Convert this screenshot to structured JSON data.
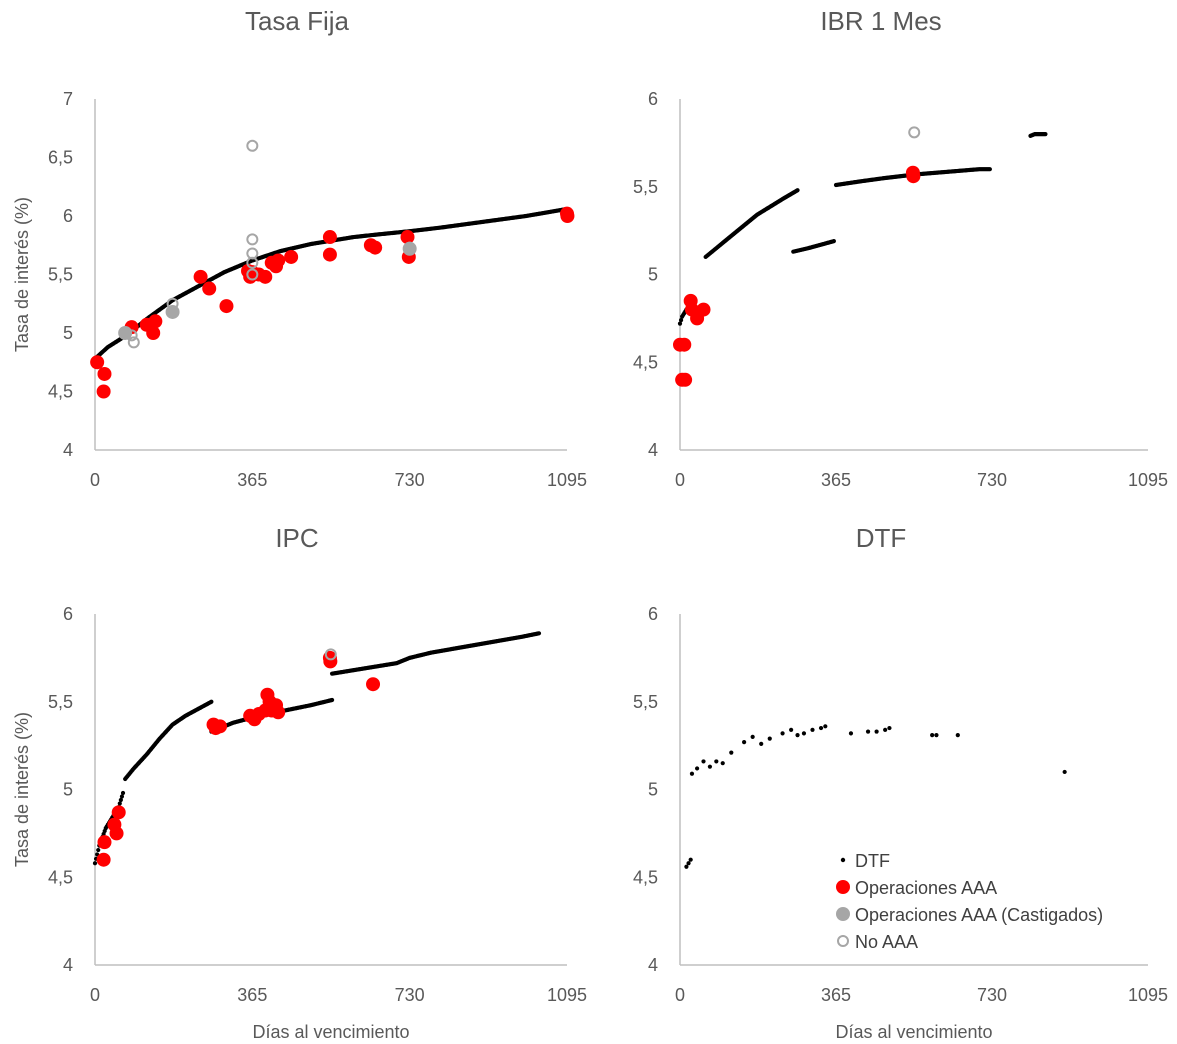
{
  "colors": {
    "dtf": "#000000",
    "aaa": "#ff0000",
    "castigados": "#a6a6a6",
    "no_aaa": "#a6a6a6"
  },
  "legend": {
    "dtf": "DTF",
    "aaa": "Operaciones AAA",
    "castigados": "Operaciones AAA (Castigados)",
    "no_aaa": "No AAA"
  },
  "chart_data": [
    {
      "type": "scatter",
      "title": "Tasa Fija",
      "xlabel": "",
      "ylabel": "Tasa de interés (%)",
      "xlim": [
        0,
        1095
      ],
      "ylim": [
        4,
        7
      ],
      "xticks": [
        "0",
        "365",
        "730",
        "1095"
      ],
      "yticks": [
        "4",
        "4,5",
        "5",
        "5,5",
        "6",
        "6,5",
        "7"
      ],
      "series": [
        {
          "key": "dtf",
          "curves": [
            {
              "x": [
                0,
                30,
                60,
                90,
                120,
                180,
                250,
                300,
                365,
                430,
                500,
                550,
                600,
                650,
                730,
                800,
                900,
                1000,
                1095
              ],
              "y": [
                4.78,
                4.88,
                4.95,
                5.03,
                5.12,
                5.28,
                5.42,
                5.52,
                5.62,
                5.7,
                5.76,
                5.79,
                5.82,
                5.84,
                5.87,
                5.9,
                5.95,
                6.0,
                6.06
              ]
            }
          ]
        },
        {
          "key": "aaa",
          "points": [
            [
              5,
              4.75
            ],
            [
              20,
              4.5
            ],
            [
              22,
              4.65
            ],
            [
              85,
              5.05
            ],
            [
              120,
              5.07
            ],
            [
              135,
              5.0
            ],
            [
              140,
              5.1
            ],
            [
              245,
              5.48
            ],
            [
              265,
              5.38
            ],
            [
              305,
              5.23
            ],
            [
              355,
              5.53
            ],
            [
              360,
              5.48
            ],
            [
              365,
              5.52
            ],
            [
              380,
              5.5
            ],
            [
              395,
              5.48
            ],
            [
              410,
              5.6
            ],
            [
              420,
              5.57
            ],
            [
              425,
              5.62
            ],
            [
              455,
              5.65
            ],
            [
              545,
              5.82
            ],
            [
              545,
              5.67
            ],
            [
              640,
              5.75
            ],
            [
              650,
              5.73
            ],
            [
              725,
              5.82
            ],
            [
              728,
              5.65
            ],
            [
              1095,
              6.02
            ],
            [
              1096,
              6.0
            ]
          ]
        },
        {
          "key": "castigados",
          "points": [
            [
              70,
              5.0
            ],
            [
              180,
              5.18
            ],
            [
              730,
              5.72
            ]
          ]
        },
        {
          "key": "no_aaa",
          "points": [
            [
              85,
              4.98
            ],
            [
              90,
              4.92
            ],
            [
              180,
              5.25
            ],
            [
              365,
              6.6
            ],
            [
              365,
              5.8
            ],
            [
              365,
              5.68
            ],
            [
              365,
              5.6
            ],
            [
              365,
              5.5
            ],
            [
              730,
              5.73
            ]
          ]
        }
      ]
    },
    {
      "type": "scatter",
      "title": "IBR 1 Mes",
      "xlabel": "",
      "ylabel": "",
      "xlim": [
        0,
        1095
      ],
      "ylim": [
        4,
        6
      ],
      "xticks": [
        "0",
        "365",
        "730",
        "1095"
      ],
      "yticks": [
        "4",
        "4,5",
        "5",
        "5,5",
        "6"
      ],
      "series": [
        {
          "key": "dtf",
          "curves": [
            {
              "x": [
                0,
                5,
                15,
                30
              ],
              "y": [
                4.72,
                4.76,
                4.8,
                4.82
              ]
            },
            {
              "x": [
                60,
                90,
                120,
                180,
                240,
                275
              ],
              "y": [
                5.1,
                5.16,
                5.22,
                5.34,
                5.43,
                5.48
              ]
            },
            {
              "x": [
                265,
                300,
                330,
                360
              ],
              "y": [
                5.13,
                5.15,
                5.17,
                5.19
              ]
            },
            {
              "x": [
                365,
                420,
                480,
                550,
                600,
                650,
                700,
                725
              ],
              "y": [
                5.51,
                5.53,
                5.55,
                5.57,
                5.58,
                5.59,
                5.6,
                5.6
              ]
            },
            {
              "x": [
                820,
                830,
                845,
                855
              ],
              "y": [
                5.79,
                5.8,
                5.8,
                5.8
              ]
            }
          ]
        },
        {
          "key": "aaa",
          "points": [
            [
              0,
              4.6
            ],
            [
              5,
              4.4
            ],
            [
              10,
              4.6
            ],
            [
              12,
              4.4
            ],
            [
              25,
              4.85
            ],
            [
              28,
              4.8
            ],
            [
              40,
              4.75
            ],
            [
              55,
              4.8
            ],
            [
              545,
              5.58
            ],
            [
              546,
              5.56
            ]
          ]
        },
        {
          "key": "no_aaa",
          "points": [
            [
              548,
              5.81
            ]
          ]
        }
      ]
    },
    {
      "type": "scatter",
      "title": "IPC",
      "xlabel": "Días al vencimiento",
      "ylabel": "Tasa de interés (%)",
      "xlim": [
        0,
        1095
      ],
      "ylim": [
        4,
        6
      ],
      "xticks": [
        "0",
        "365",
        "730",
        "1095"
      ],
      "yticks": [
        "4",
        "4,5",
        "5",
        "5,5",
        "6"
      ],
      "series": [
        {
          "key": "dtf",
          "curves": [
            {
              "x": [
                0,
                10,
                25,
                40,
                55,
                65
              ],
              "y": [
                4.58,
                4.68,
                4.78,
                4.84,
                4.9,
                4.98
              ]
            },
            {
              "x": [
                70,
                90,
                120,
                150,
                180,
                210,
                240,
                270
              ],
              "y": [
                5.06,
                5.12,
                5.2,
                5.29,
                5.37,
                5.42,
                5.46,
                5.5
              ]
            },
            {
              "x": [
                270,
                320,
                380,
                440,
                500,
                550
              ],
              "y": [
                5.33,
                5.38,
                5.42,
                5.45,
                5.48,
                5.51
              ]
            },
            {
              "x": [
                550,
                600,
                650,
                700,
                730,
                780,
                850,
                920,
                990,
                1030
              ],
              "y": [
                5.66,
                5.68,
                5.7,
                5.72,
                5.75,
                5.78,
                5.81,
                5.84,
                5.87,
                5.89
              ]
            }
          ]
        },
        {
          "key": "aaa",
          "points": [
            [
              20,
              4.6
            ],
            [
              22,
              4.7
            ],
            [
              45,
              4.8
            ],
            [
              50,
              4.75
            ],
            [
              55,
              4.87
            ],
            [
              275,
              5.37
            ],
            [
              280,
              5.35
            ],
            [
              290,
              5.36
            ],
            [
              360,
              5.42
            ],
            [
              370,
              5.4
            ],
            [
              380,
              5.43
            ],
            [
              395,
              5.45
            ],
            [
              400,
              5.54
            ],
            [
              405,
              5.5
            ],
            [
              410,
              5.45
            ],
            [
              420,
              5.48
            ],
            [
              425,
              5.44
            ],
            [
              545,
              5.75
            ],
            [
              546,
              5.73
            ],
            [
              645,
              5.6
            ]
          ]
        },
        {
          "key": "no_aaa",
          "points": [
            [
              547,
              5.77
            ]
          ]
        }
      ]
    },
    {
      "type": "scatter",
      "title": "DTF",
      "xlabel": "Días al vencimiento",
      "ylabel": "",
      "xlim": [
        0,
        1095
      ],
      "ylim": [
        4,
        6
      ],
      "xticks": [
        "0",
        "365",
        "730",
        "1095"
      ],
      "yticks": [
        "4",
        "4,5",
        "5",
        "5,5",
        "6"
      ],
      "series": [
        {
          "key": "dtf",
          "points": [
            [
              15,
              4.56
            ],
            [
              20,
              4.58
            ],
            [
              25,
              4.6
            ],
            [
              28,
              5.09
            ],
            [
              40,
              5.12
            ],
            [
              55,
              5.16
            ],
            [
              70,
              5.13
            ],
            [
              85,
              5.16
            ],
            [
              100,
              5.15
            ],
            [
              120,
              5.21
            ],
            [
              150,
              5.27
            ],
            [
              170,
              5.3
            ],
            [
              190,
              5.26
            ],
            [
              210,
              5.29
            ],
            [
              240,
              5.32
            ],
            [
              260,
              5.34
            ],
            [
              275,
              5.31
            ],
            [
              290,
              5.32
            ],
            [
              310,
              5.34
            ],
            [
              330,
              5.35
            ],
            [
              340,
              5.36
            ],
            [
              400,
              5.32
            ],
            [
              440,
              5.33
            ],
            [
              460,
              5.33
            ],
            [
              480,
              5.34
            ],
            [
              490,
              5.35
            ],
            [
              590,
              5.31
            ],
            [
              600,
              5.31
            ],
            [
              650,
              5.31
            ],
            [
              900,
              5.1
            ]
          ]
        }
      ]
    }
  ]
}
